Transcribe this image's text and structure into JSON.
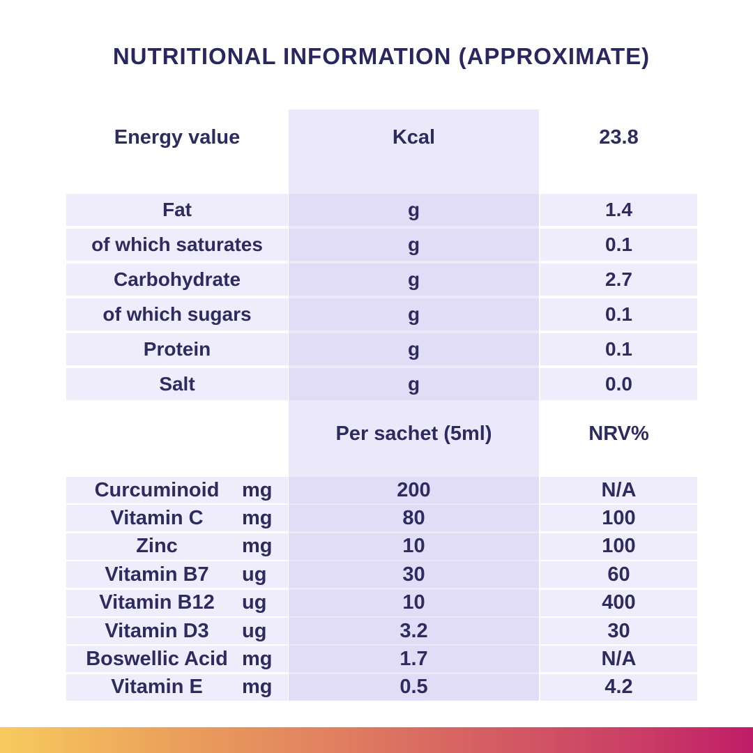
{
  "title": "NUTRITIONAL INFORMATION (APPROXIMATE)",
  "energy": {
    "label": "Energy value",
    "unit": "Kcal",
    "value": "23.8"
  },
  "macros": [
    {
      "label": "Fat",
      "unit": "g",
      "value": "1.4"
    },
    {
      "label": "of which saturates",
      "unit": "g",
      "value": "0.1"
    },
    {
      "label": "Carbohydrate",
      "unit": "g",
      "value": "2.7"
    },
    {
      "label": "of which sugars",
      "unit": "g",
      "value": "0.1"
    },
    {
      "label": "Protein",
      "unit": "g",
      "value": "0.1"
    },
    {
      "label": "Salt",
      "unit": "g",
      "value": "0.0"
    }
  ],
  "micro_header": {
    "per_sachet": "Per sachet (5ml)",
    "nrv": "NRV%"
  },
  "micros": [
    {
      "name": "Curcuminoid",
      "unit": "mg",
      "amount": "200",
      "nrv": "N/A"
    },
    {
      "name": "Vitamin C",
      "unit": "mg",
      "amount": "80",
      "nrv": "100"
    },
    {
      "name": "Zinc",
      "unit": "mg",
      "amount": "10",
      "nrv": "100"
    },
    {
      "name": "Vitamin B7",
      "unit": "ug",
      "amount": "30",
      "nrv": "60"
    },
    {
      "name": "Vitamin B12",
      "unit": "ug",
      "amount": "10",
      "nrv": "400"
    },
    {
      "name": "Vitamin D3",
      "unit": "ug",
      "amount": "3.2",
      "nrv": "30"
    },
    {
      "name": "Boswellic Acid",
      "unit": "mg",
      "amount": "1.7",
      "nrv": "N/A"
    },
    {
      "name": "Vitamin E",
      "unit": "mg",
      "amount": "0.5",
      "nrv": "4.2"
    }
  ],
  "colors": {
    "text": "#2e2b5e",
    "row_bg": "#efedfb",
    "column_bg": "#ebe8fa",
    "gradient_start": "#f8cb5e",
    "gradient_end": "#bf1d67"
  }
}
